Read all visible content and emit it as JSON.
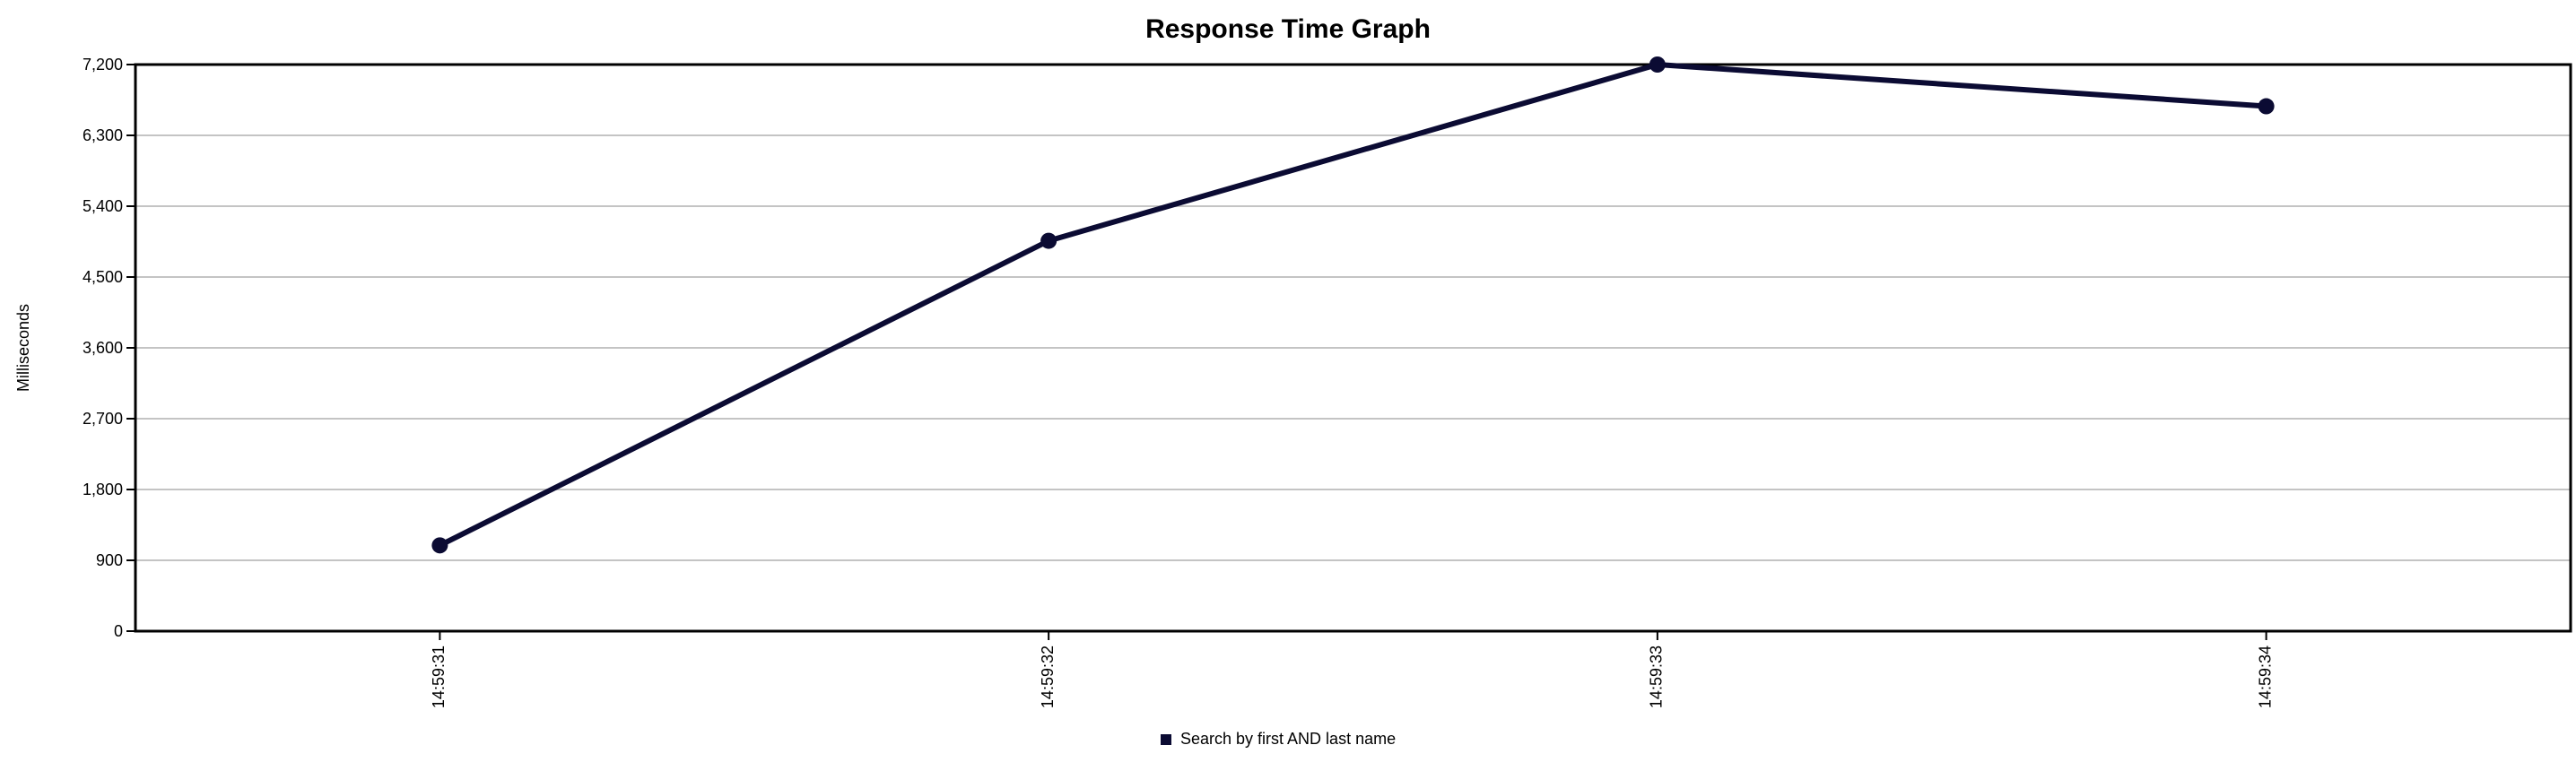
{
  "chart_data": {
    "type": "line",
    "title": "Response Time Graph",
    "xlabel": "",
    "ylabel": "Milliseconds",
    "categories": [
      "14:59:31",
      "14:59:32",
      "14:59:33",
      "14:59:34"
    ],
    "y_ticks": [
      "0",
      "900",
      "1,800",
      "2,700",
      "3,600",
      "4,500",
      "5,400",
      "6,300",
      "7,200"
    ],
    "ylim": [
      0,
      7200
    ],
    "grid": true,
    "legend_position": "bottom",
    "series": [
      {
        "name": "Search by first AND last name",
        "values": [
          1090,
          4960,
          7200,
          6670
        ],
        "color": "#0b0b33"
      }
    ]
  }
}
